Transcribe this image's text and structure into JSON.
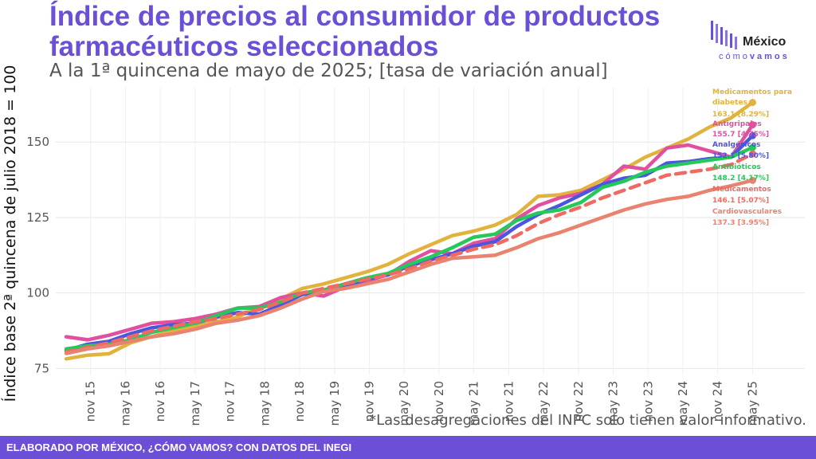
{
  "header": {
    "title": "Índice de precios al consumidor de productos farmacéuticos seleccionados",
    "subtitle": "A la 1ª quincena de mayo de 2025; [tasa de variación anual]"
  },
  "note": "*Las desagregaciones del INPC solo tienen valor informativo.",
  "footer": "ELABORADO POR MÉXICO, ¿CÓMO VAMOS? CON DATOS DEL INEGI",
  "logo": {
    "word": "México",
    "sub_a": "cómo",
    "sub_b": "vamos"
  },
  "colors": {
    "accent": "#6b4fd6",
    "diabetes": "#e2b33c",
    "antigripales": "#e0509f",
    "analgesicos": "#4b55e0",
    "antibioticos": "#24c95a",
    "medicamentos": "#ee6a63",
    "cardiovasculares": "#ea8270"
  },
  "chart_data": {
    "type": "line",
    "ylabel": "Índice base 2ª quincena de julio 2018 = 100",
    "xlabel": "",
    "ylim": [
      73,
      168
    ],
    "xlim": [
      0,
      21.5
    ],
    "yticks": [
      75,
      100,
      125,
      150
    ],
    "xtick_labels": [
      "nov 15",
      "may 16",
      "nov 16",
      "may 17",
      "nov 17",
      "may 18",
      "nov 18",
      "may 19",
      "nov 19",
      "may 20",
      "nov 20",
      "may 21",
      "nov 21",
      "may 22",
      "nov 22",
      "may 23",
      "nov 23",
      "may 24",
      "nov 24",
      "may 25"
    ],
    "grid": true,
    "legend": "right",
    "series": [
      {
        "key": "diabetes",
        "name": "Medicamentos para diabetes",
        "end_label": "163.1 [8.29%]",
        "style": "solid",
        "values": [
          78.2,
          79.4,
          79.9,
          83.5,
          85.6,
          87.5,
          89.0,
          90.5,
          92.0,
          95.5,
          98.0,
          101.5,
          103.0,
          105.0,
          107.0,
          109.5,
          113.0,
          116.0,
          119.0,
          120.5,
          122.5,
          126.0,
          132.0,
          132.5,
          134.0,
          137.5,
          141.0,
          145.0,
          148.0,
          151.0,
          155.0,
          158.0,
          163.1
        ]
      },
      {
        "key": "antigripales",
        "name": "Antigripales",
        "end_label": "155.7 [4.75%]",
        "style": "solid",
        "values": [
          85.5,
          84.5,
          86.0,
          88.0,
          90.0,
          90.5,
          91.5,
          93.0,
          95.0,
          95.5,
          98.5,
          100.0,
          99.0,
          102.0,
          104.0,
          106.0,
          110.5,
          114.0,
          113.0,
          116.5,
          118.0,
          124.5,
          129.0,
          131.5,
          133.0,
          136.0,
          142.0,
          141.0,
          148.0,
          149.0,
          147.0,
          145.0,
          155.7
        ]
      },
      {
        "key": "analgesicos",
        "name": "Analgésicos",
        "end_label": "152.1 [5.80%]",
        "style": "solid",
        "values": [
          81.0,
          83.0,
          84.0,
          86.5,
          88.5,
          89.5,
          90.0,
          92.0,
          93.5,
          93.0,
          96.0,
          99.5,
          100.5,
          102.0,
          104.5,
          106.0,
          109.0,
          111.0,
          113.0,
          115.5,
          117.0,
          122.0,
          126.0,
          129.0,
          132.5,
          136.0,
          138.0,
          139.0,
          143.0,
          143.5,
          144.5,
          145.0,
          152.1
        ]
      },
      {
        "key": "antibioticos",
        "name": "Antibióticos",
        "end_label": "148.2 [4.17%]",
        "style": "solid",
        "values": [
          81.5,
          82.5,
          83.0,
          84.5,
          87.0,
          88.5,
          90.0,
          92.5,
          95.0,
          95.0,
          97.0,
          100.0,
          101.0,
          103.0,
          105.0,
          106.5,
          109.5,
          112.0,
          115.0,
          118.5,
          119.5,
          124.0,
          126.5,
          127.5,
          130.0,
          135.0,
          137.0,
          140.0,
          142.0,
          143.0,
          144.0,
          145.0,
          148.2
        ]
      },
      {
        "key": "medicamentos",
        "name": "Medicamentos",
        "end_label": "146.1 [5.07%]",
        "style": "dashed",
        "values": [
          80.5,
          82.0,
          83.5,
          85.5,
          87.5,
          89.0,
          90.5,
          91.5,
          93.0,
          94.5,
          97.0,
          100.0,
          101.5,
          103.0,
          104.5,
          106.0,
          108.0,
          110.5,
          112.5,
          114.5,
          116.0,
          119.0,
          123.0,
          126.0,
          128.5,
          131.5,
          134.0,
          136.5,
          139.0,
          140.0,
          141.0,
          142.5,
          146.1
        ]
      },
      {
        "key": "cardiovasculares",
        "name": "Cardiovasculares",
        "end_label": "137.3 [3.95%]",
        "style": "solid",
        "values": [
          80.0,
          81.5,
          82.5,
          84.0,
          85.5,
          86.5,
          88.0,
          90.0,
          91.0,
          92.5,
          95.0,
          98.0,
          100.5,
          101.5,
          103.0,
          104.5,
          107.0,
          109.5,
          111.5,
          112.0,
          112.5,
          115.0,
          118.0,
          120.0,
          122.5,
          125.0,
          127.5,
          129.5,
          131.0,
          132.0,
          134.0,
          135.5,
          137.3
        ]
      }
    ]
  }
}
